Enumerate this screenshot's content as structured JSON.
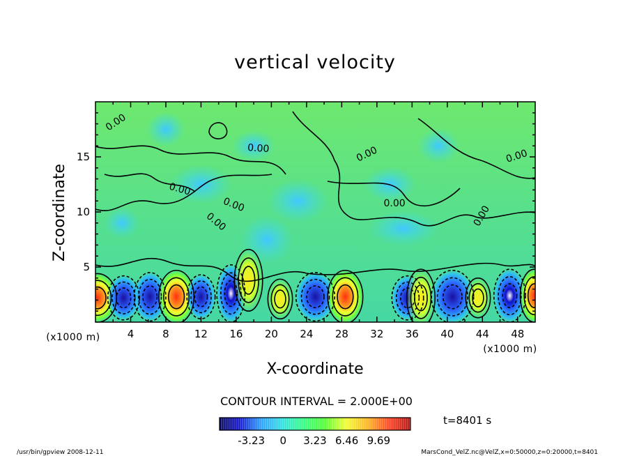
{
  "title": "vertical velocity",
  "chart_data": {
    "type": "heatmap",
    "title": "vertical velocity",
    "xlabel": "X-coordinate",
    "ylabel": "Z-coordinate",
    "x_unit": "(x1000 m)",
    "x_unit_right": "(x1000 m)",
    "xlim": [
      0,
      50
    ],
    "ylim": [
      0,
      20
    ],
    "x_ticks": [
      "4",
      "8",
      "12",
      "16",
      "20",
      "24",
      "28",
      "32",
      "36",
      "40",
      "44",
      "48"
    ],
    "y_ticks": [
      "5",
      "10",
      "15"
    ],
    "contour_labels": [
      "0.00",
      "0.00",
      "0.00",
      "0.00",
      "0.00",
      "0.00",
      "0.00",
      "0.00",
      "0.00"
    ],
    "colorbar": {
      "ticks": [
        "-3.23",
        "0",
        "3.23",
        "6.46",
        "9.69"
      ],
      "min": -6.46,
      "max": 12.92,
      "colors": [
        "#08085a",
        "#1010c8",
        "#2aa0ff",
        "#30e0e0",
        "#30ff80",
        "#50ff30",
        "#f0ff30",
        "#ffb020",
        "#ff4020",
        "#b01010"
      ]
    },
    "contour_interval": "CONTOUR INTERVAL = 2.000E+00",
    "time": "t=8401 s"
  },
  "footer": {
    "left": "/usr/bin/gpview   2008-12-11",
    "right": "MarsCond_VelZ.nc@VelZ,x=0:50000,z=0:20000,t=8401"
  }
}
